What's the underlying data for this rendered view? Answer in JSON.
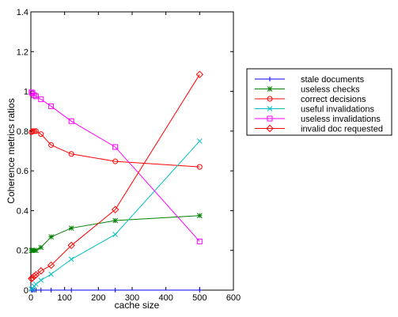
{
  "chart_data": {
    "type": "line",
    "title": "",
    "xlabel": "cache size",
    "ylabel": "Coherence metrics ratios",
    "xlim": [
      0,
      600
    ],
    "ylim": [
      0,
      1.4
    ],
    "xticks": [
      0,
      100,
      200,
      300,
      400,
      500,
      600
    ],
    "yticks": [
      0,
      0.2,
      0.4,
      0.6,
      0.8,
      1,
      1.2,
      1.4
    ],
    "xtick_labels": [
      "0",
      "100",
      "200",
      "300",
      "400",
      "500",
      "600"
    ],
    "ytick_labels": [
      "0",
      "0.2",
      "0.4",
      "0.6",
      "0.8",
      "1",
      "1.2",
      "1.4"
    ],
    "grid": false,
    "legend_position": "right",
    "x": [
      2,
      5,
      10,
      15,
      30,
      60,
      120,
      250,
      500
    ],
    "series": [
      {
        "name": "stale documents",
        "color": "#0000ff",
        "marker": "plus",
        "values": [
          0,
          0,
          0,
          0,
          0,
          0,
          0,
          0,
          0
        ]
      },
      {
        "name": "useless checks",
        "color": "#008000",
        "marker": "star",
        "values": [
          0.2,
          0.2,
          0.2,
          0.2,
          0.215,
          0.268,
          0.312,
          0.35,
          0.375
        ]
      },
      {
        "name": "correct decisions",
        "color": "#ff0000",
        "marker": "circle",
        "values": [
          0.795,
          0.8,
          0.8,
          0.8,
          0.785,
          0.73,
          0.685,
          0.648,
          0.62
        ]
      },
      {
        "name": "useful invalidations",
        "color": "#00c0c0",
        "marker": "x",
        "values": [
          0.005,
          0.01,
          0.02,
          0.03,
          0.05,
          0.08,
          0.155,
          0.28,
          0.75
        ]
      },
      {
        "name": "useless invalidations",
        "color": "#ff00ff",
        "marker": "square",
        "values": [
          0.995,
          0.99,
          0.98,
          0.975,
          0.96,
          0.925,
          0.85,
          0.72,
          0.245
        ]
      },
      {
        "name": "invalid doc requested",
        "color": "#ff0000",
        "marker": "diamond",
        "values": [
          0.058,
          0.062,
          0.07,
          0.077,
          0.097,
          0.125,
          0.225,
          0.405,
          1.085
        ]
      }
    ]
  }
}
